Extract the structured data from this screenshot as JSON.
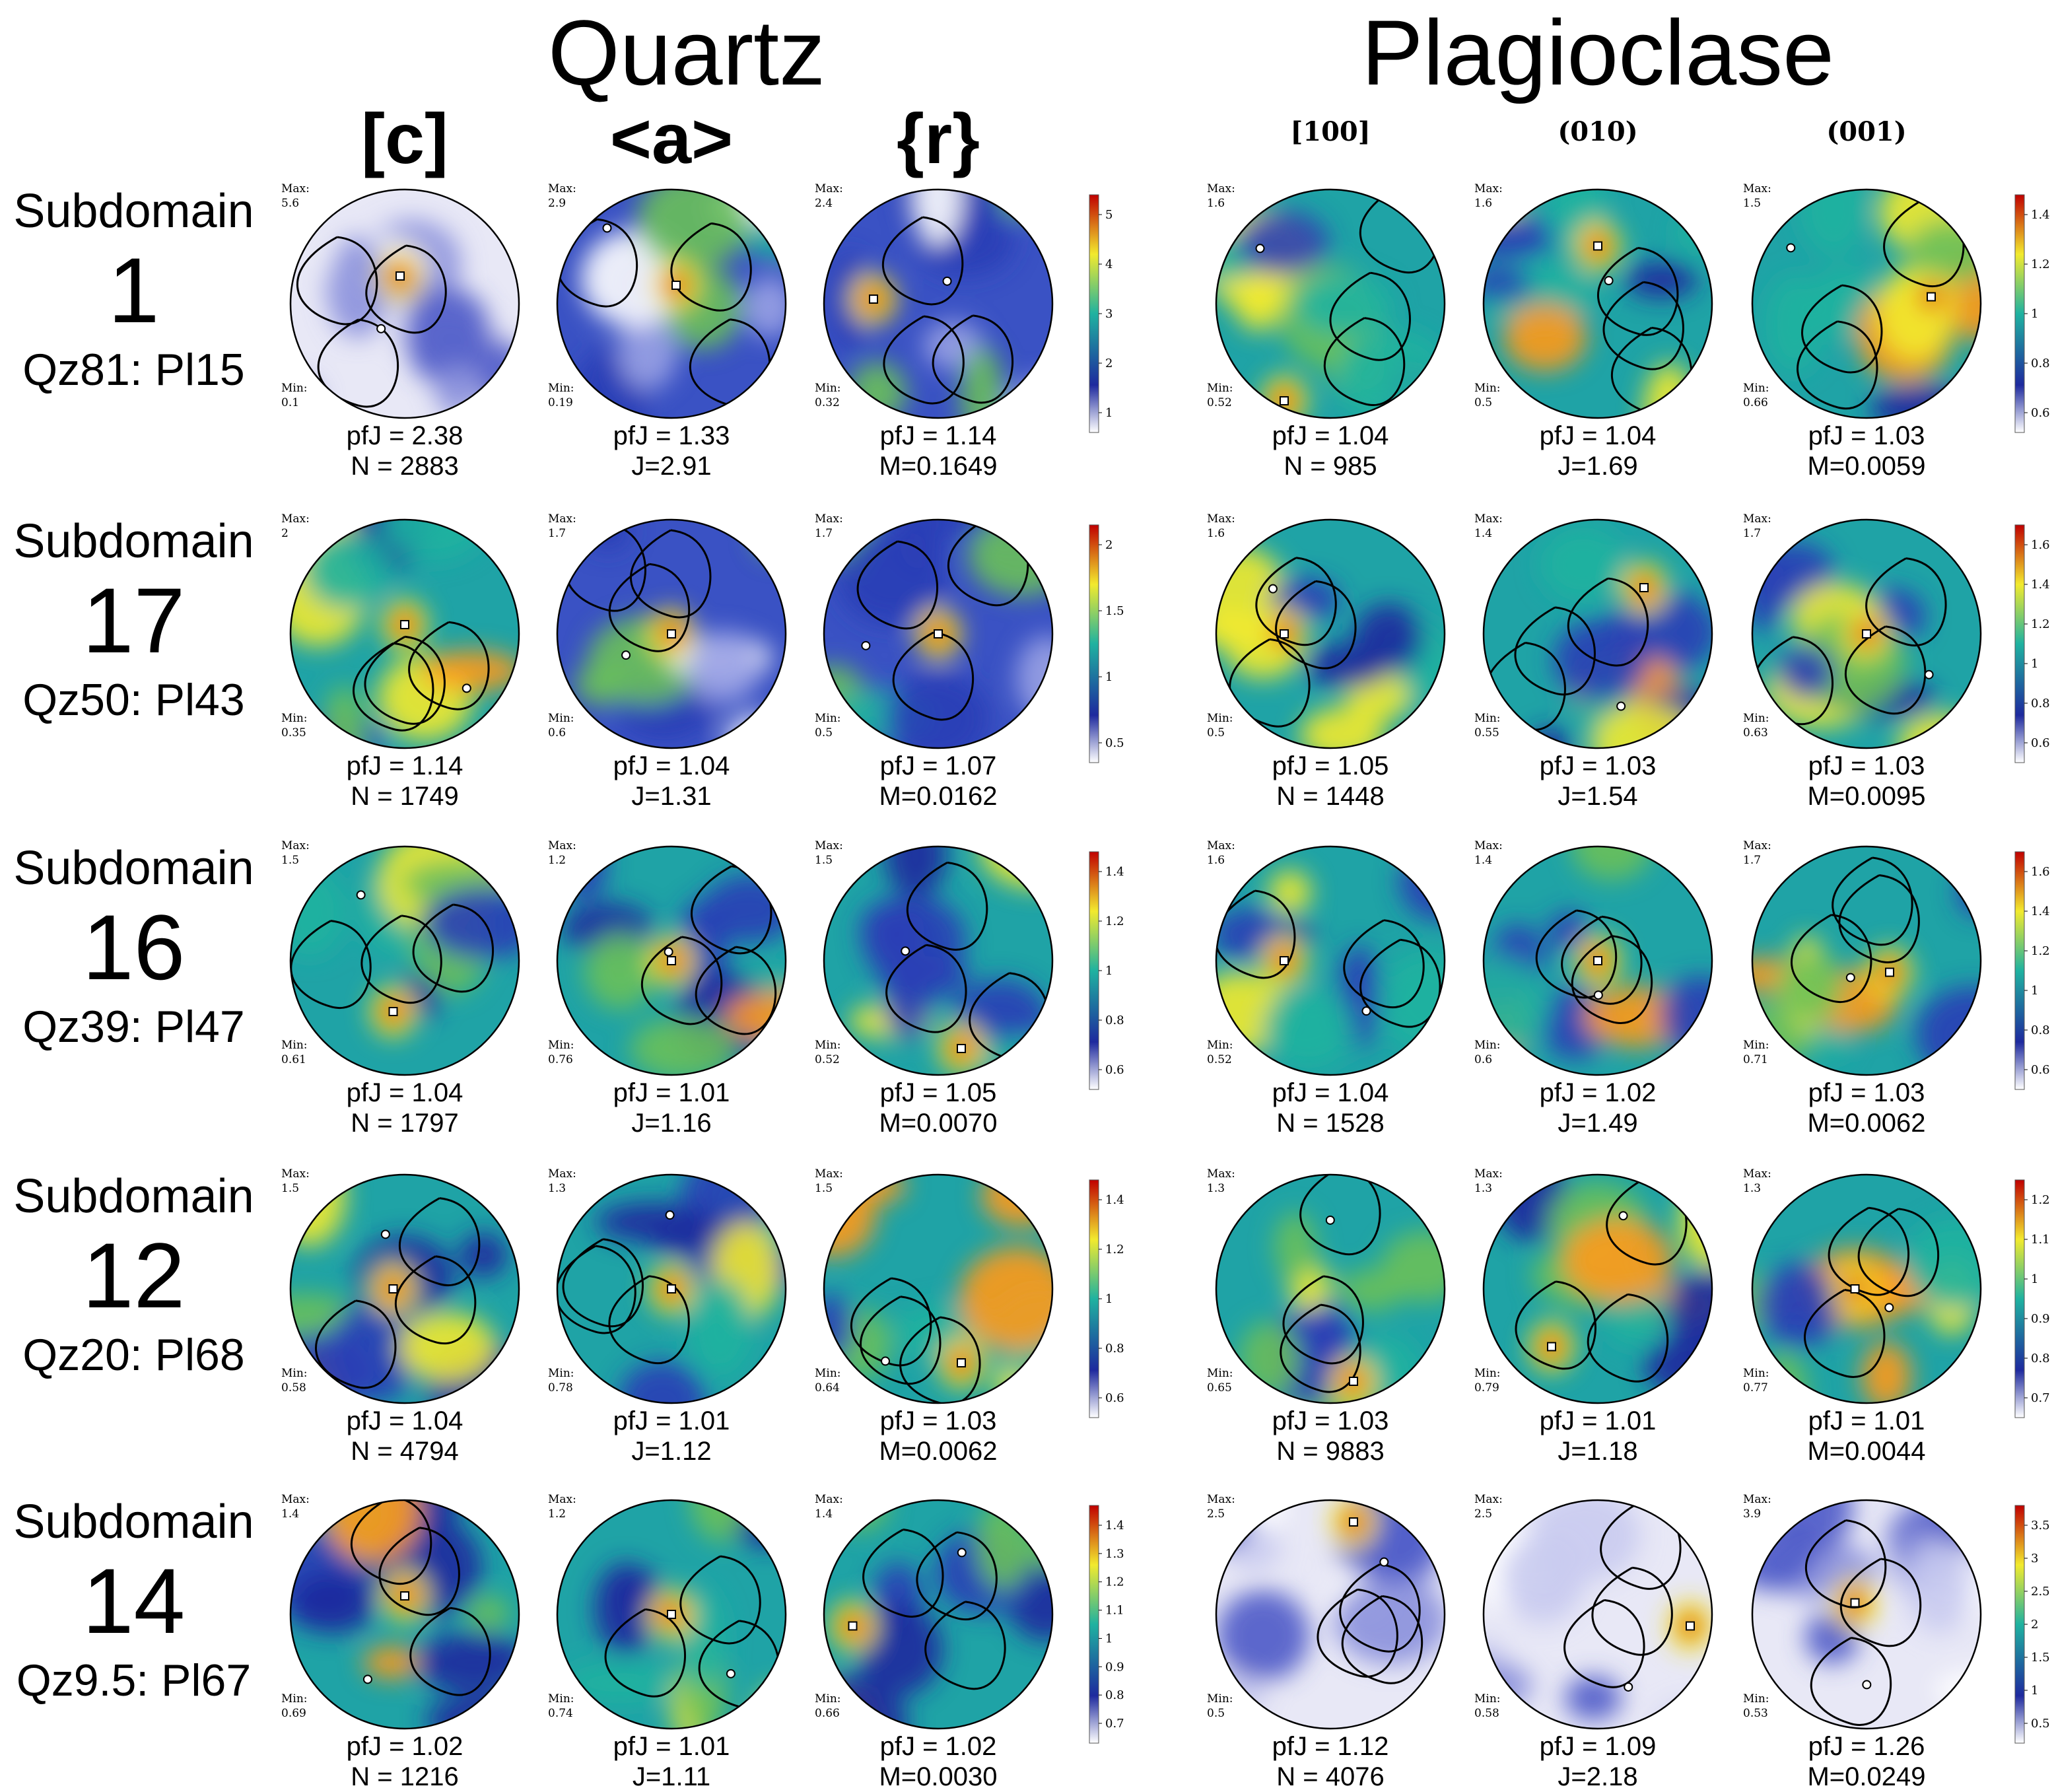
{
  "titles": {
    "quartz": "Quartz",
    "plagioclase": "Plagioclase"
  },
  "quartz_axes": [
    "[c]",
    "<a>",
    "{r}"
  ],
  "plag_axes": [
    "[100]",
    "(010)",
    "(001)"
  ],
  "labels": {
    "max": "Max:",
    "min": "Min:",
    "subdomain": "Subdomain"
  },
  "colors": {
    "low": "#ffffff",
    "mid_low": "#1e2a9e",
    "mid": "#1fb2a0",
    "mid_high": "#f2ea2e",
    "high": "#c00000"
  },
  "rows": [
    {
      "subdomain": "1",
      "ratio": "Qz81: Pl15",
      "quartz": [
        {
          "max": "5.6",
          "min": "0.1",
          "stat1": "pfJ = 2.38",
          "stat2": "N = 2883"
        },
        {
          "max": "2.9",
          "min": "0.19",
          "stat1": "pfJ = 1.33",
          "stat2": "J=2.91"
        },
        {
          "max": "2.4",
          "min": "0.32",
          "stat1": "pfJ = 1.14",
          "stat2": "M=0.1649"
        }
      ],
      "quartz_cbar": [
        "5",
        "4",
        "3",
        "2",
        "1"
      ],
      "plag": [
        {
          "max": "1.6",
          "min": "0.52",
          "stat1": "pfJ = 1.04",
          "stat2": "N = 985"
        },
        {
          "max": "1.6",
          "min": "0.5",
          "stat1": "pfJ = 1.04",
          "stat2": "J=1.69"
        },
        {
          "max": "1.5",
          "min": "0.66",
          "stat1": "pfJ = 1.03",
          "stat2": "M=0.0059"
        }
      ],
      "plag_cbar": [
        "1.4",
        "1.2",
        "1",
        "0.8",
        "0.6"
      ]
    },
    {
      "subdomain": "17",
      "ratio": "Qz50: Pl43",
      "quartz": [
        {
          "max": "2",
          "min": "0.35",
          "stat1": "pfJ = 1.14",
          "stat2": "N = 1749"
        },
        {
          "max": "1.7",
          "min": "0.6",
          "stat1": "pfJ = 1.04",
          "stat2": "J=1.31"
        },
        {
          "max": "1.7",
          "min": "0.5",
          "stat1": "pfJ = 1.07",
          "stat2": "M=0.0162"
        }
      ],
      "quartz_cbar": [
        "2",
        "1.5",
        "1",
        "0.5"
      ],
      "plag": [
        {
          "max": "1.6",
          "min": "0.5",
          "stat1": "pfJ = 1.05",
          "stat2": "N = 1448"
        },
        {
          "max": "1.4",
          "min": "0.55",
          "stat1": "pfJ = 1.03",
          "stat2": "J=1.54"
        },
        {
          "max": "1.7",
          "min": "0.63",
          "stat1": "pfJ = 1.03",
          "stat2": "M=0.0095"
        }
      ],
      "plag_cbar": [
        "1.6",
        "1.4",
        "1.2",
        "1",
        "0.8",
        "0.6"
      ]
    },
    {
      "subdomain": "16",
      "ratio": "Qz39: Pl47",
      "quartz": [
        {
          "max": "1.5",
          "min": "0.61",
          "stat1": "pfJ = 1.04",
          "stat2": "N = 1797"
        },
        {
          "max": "1.2",
          "min": "0.76",
          "stat1": "pfJ = 1.01",
          "stat2": "J=1.16"
        },
        {
          "max": "1.5",
          "min": "0.52",
          "stat1": "pfJ = 1.05",
          "stat2": "M=0.0070"
        }
      ],
      "quartz_cbar": [
        "1.4",
        "1.2",
        "1",
        "0.8",
        "0.6"
      ],
      "plag": [
        {
          "max": "1.6",
          "min": "0.52",
          "stat1": "pfJ = 1.04",
          "stat2": "N = 1528"
        },
        {
          "max": "1.4",
          "min": "0.6",
          "stat1": "pfJ = 1.02",
          "stat2": "J=1.49"
        },
        {
          "max": "1.7",
          "min": "0.71",
          "stat1": "pfJ = 1.03",
          "stat2": "M=0.0062"
        }
      ],
      "plag_cbar": [
        "1.6",
        "1.4",
        "1.2",
        "1",
        "0.8",
        "0.6"
      ]
    },
    {
      "subdomain": "12",
      "ratio": "Qz20: Pl68",
      "quartz": [
        {
          "max": "1.5",
          "min": "0.58",
          "stat1": "pfJ = 1.04",
          "stat2": "N = 4794"
        },
        {
          "max": "1.3",
          "min": "0.78",
          "stat1": "pfJ = 1.01",
          "stat2": "J=1.12"
        },
        {
          "max": "1.5",
          "min": "0.64",
          "stat1": "pfJ = 1.03",
          "stat2": "M=0.0062"
        }
      ],
      "quartz_cbar": [
        "1.4",
        "1.2",
        "1",
        "0.8",
        "0.6"
      ],
      "plag": [
        {
          "max": "1.3",
          "min": "0.65",
          "stat1": "pfJ = 1.03",
          "stat2": "N = 9883"
        },
        {
          "max": "1.3",
          "min": "0.79",
          "stat1": "pfJ = 1.01",
          "stat2": "J=1.18"
        },
        {
          "max": "1.3",
          "min": "0.77",
          "stat1": "pfJ = 1.01",
          "stat2": "M=0.0044"
        }
      ],
      "plag_cbar": [
        "1.2",
        "1.1",
        "1",
        "0.9",
        "0.8",
        "0.7"
      ]
    },
    {
      "subdomain": "14",
      "ratio": "Qz9.5: Pl67",
      "quartz": [
        {
          "max": "1.4",
          "min": "0.69",
          "stat1": "pfJ = 1.02",
          "stat2": "N = 1216"
        },
        {
          "max": "1.2",
          "min": "0.74",
          "stat1": "pfJ = 1.01",
          "stat2": "J=1.11"
        },
        {
          "max": "1.4",
          "min": "0.66",
          "stat1": "pfJ = 1.02",
          "stat2": "M=0.0030"
        }
      ],
      "quartz_cbar": [
        "1.4",
        "1.3",
        "1.2",
        "1.1",
        "1",
        "0.9",
        "0.8",
        "0.7"
      ],
      "plag": [
        {
          "max": "2.5",
          "min": "0.5",
          "stat1": "pfJ = 1.12",
          "stat2": "N = 4076"
        },
        {
          "max": "2.5",
          "min": "0.58",
          "stat1": "pfJ = 1.09",
          "stat2": "J=2.18"
        },
        {
          "max": "3.9",
          "min": "0.53",
          "stat1": "pfJ = 1.26",
          "stat2": "M=0.0249"
        }
      ],
      "plag_cbar": [
        "3.5",
        "3",
        "2.5",
        "2",
        "1.5",
        "1",
        "0.5"
      ]
    }
  ]
}
